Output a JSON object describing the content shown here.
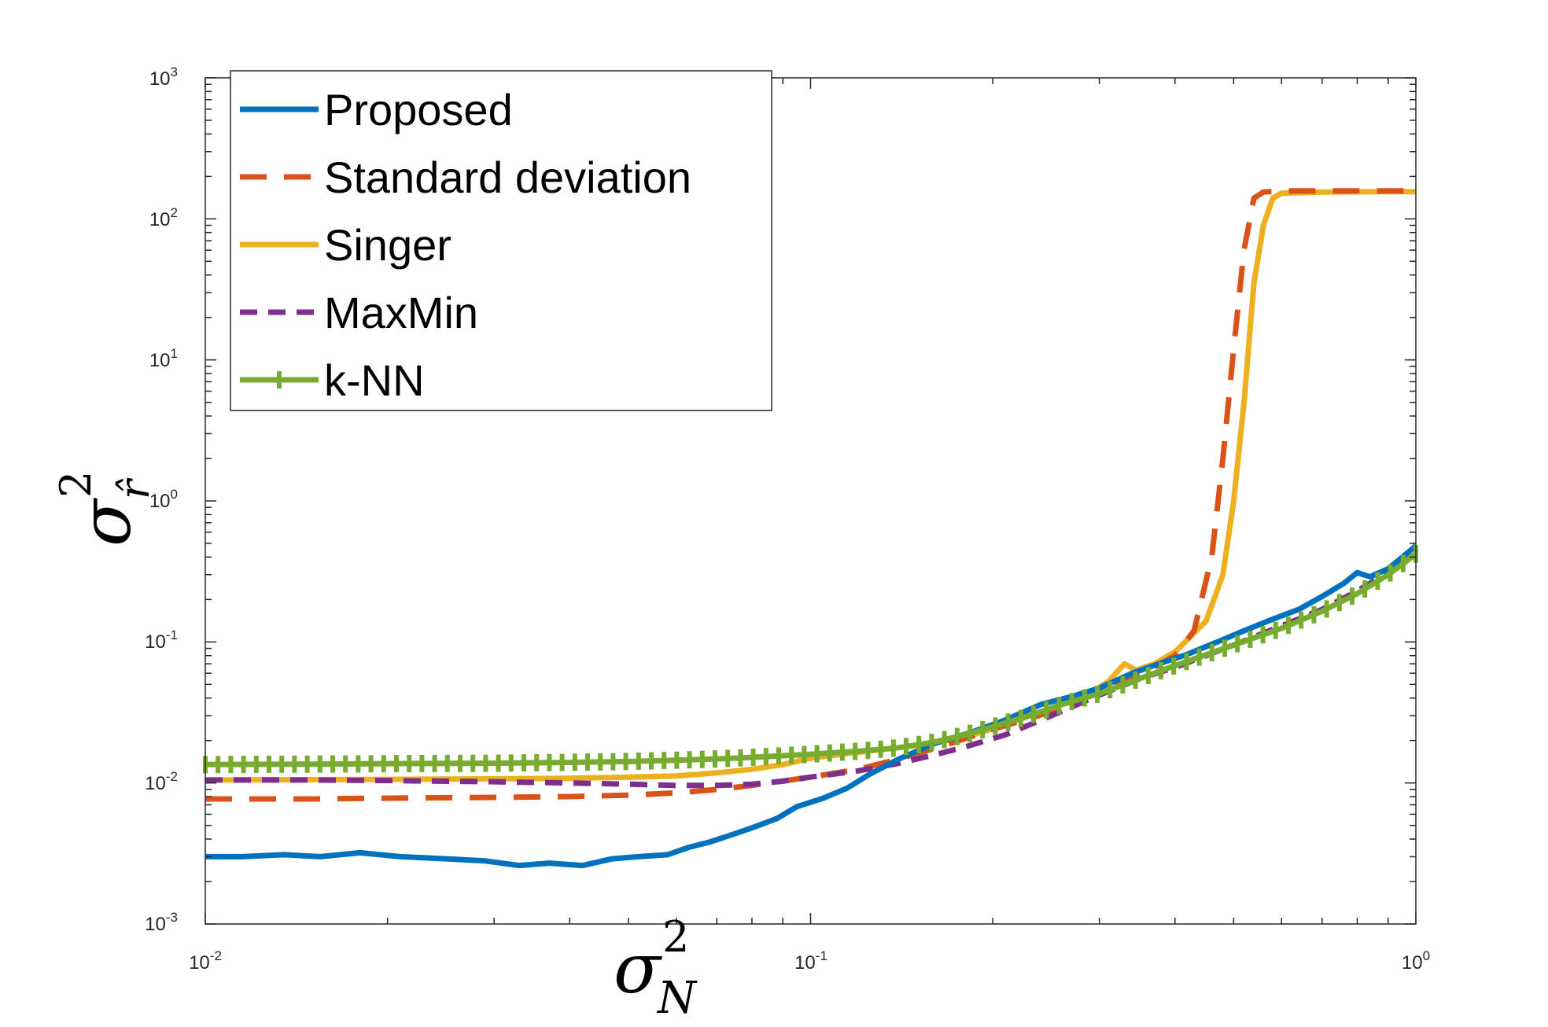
{
  "chart_data": {
    "type": "line",
    "xscale": "log",
    "yscale": "log",
    "xlim": [
      0.01,
      1
    ],
    "ylim": [
      0.001,
      1000
    ],
    "xlabel": {
      "symbol": "σ",
      "sup": "2",
      "sub": "N"
    },
    "ylabel": {
      "symbol": "σ",
      "sup": "2",
      "sub": "r̂"
    },
    "x_ticks": [
      {
        "base": "10",
        "exp": "-2"
      },
      {
        "base": "10",
        "exp": "-1"
      },
      {
        "base": "10",
        "exp": "0"
      }
    ],
    "y_ticks": [
      {
        "base": "10",
        "exp": "-3"
      },
      {
        "base": "10",
        "exp": "-2"
      },
      {
        "base": "10",
        "exp": "-1"
      },
      {
        "base": "10",
        "exp": "0"
      },
      {
        "base": "10",
        "exp": "1"
      },
      {
        "base": "10",
        "exp": "2"
      },
      {
        "base": "10",
        "exp": "3"
      }
    ],
    "legend_position": "top-left",
    "series": [
      {
        "name": "Proposed",
        "color": "#0072BD",
        "style": "solid",
        "points": [
          [
            0.01,
            0.003
          ],
          [
            0.0115,
            0.003
          ],
          [
            0.0135,
            0.0031
          ],
          [
            0.0155,
            0.003
          ],
          [
            0.018,
            0.0032
          ],
          [
            0.021,
            0.003
          ],
          [
            0.025,
            0.0029
          ],
          [
            0.029,
            0.0028
          ],
          [
            0.033,
            0.0026
          ],
          [
            0.037,
            0.0027
          ],
          [
            0.042,
            0.0026
          ],
          [
            0.047,
            0.0029
          ],
          [
            0.052,
            0.003
          ],
          [
            0.058,
            0.0031
          ],
          [
            0.063,
            0.0035
          ],
          [
            0.068,
            0.0038
          ],
          [
            0.073,
            0.0042
          ],
          [
            0.08,
            0.0048
          ],
          [
            0.088,
            0.0056
          ],
          [
            0.095,
            0.0068
          ],
          [
            0.105,
            0.0078
          ],
          [
            0.115,
            0.0092
          ],
          [
            0.125,
            0.0115
          ],
          [
            0.14,
            0.0148
          ],
          [
            0.16,
            0.019
          ],
          [
            0.185,
            0.023
          ],
          [
            0.21,
            0.028
          ],
          [
            0.24,
            0.036
          ],
          [
            0.27,
            0.041
          ],
          [
            0.3,
            0.047
          ],
          [
            0.34,
            0.06
          ],
          [
            0.38,
            0.071
          ],
          [
            0.42,
            0.082
          ],
          [
            0.47,
            0.1
          ],
          [
            0.52,
            0.12
          ],
          [
            0.58,
            0.145
          ],
          [
            0.64,
            0.17
          ],
          [
            0.7,
            0.21
          ],
          [
            0.76,
            0.26
          ],
          [
            0.8,
            0.31
          ],
          [
            0.84,
            0.29
          ],
          [
            0.9,
            0.33
          ],
          [
            0.95,
            0.4
          ],
          [
            1.0,
            0.48
          ]
        ]
      },
      {
        "name": "Standard deviation",
        "color": "#D95319",
        "style": "dashed",
        "points": [
          [
            0.01,
            0.0077
          ],
          [
            0.015,
            0.0077
          ],
          [
            0.02,
            0.0078
          ],
          [
            0.03,
            0.0079
          ],
          [
            0.04,
            0.008
          ],
          [
            0.05,
            0.0082
          ],
          [
            0.06,
            0.0085
          ],
          [
            0.07,
            0.009
          ],
          [
            0.08,
            0.0096
          ],
          [
            0.1,
            0.011
          ],
          [
            0.12,
            0.0125
          ],
          [
            0.14,
            0.0148
          ],
          [
            0.17,
            0.019
          ],
          [
            0.2,
            0.024
          ],
          [
            0.25,
            0.032
          ],
          [
            0.3,
            0.045
          ],
          [
            0.35,
            0.058
          ],
          [
            0.4,
            0.08
          ],
          [
            0.43,
            0.12
          ],
          [
            0.46,
            0.4
          ],
          [
            0.48,
            2.0
          ],
          [
            0.5,
            12
          ],
          [
            0.52,
            60
          ],
          [
            0.54,
            140
          ],
          [
            0.56,
            155
          ],
          [
            0.6,
            158
          ],
          [
            0.7,
            158
          ],
          [
            0.85,
            158
          ],
          [
            1.0,
            158
          ]
        ]
      },
      {
        "name": "Singer",
        "color": "#EDB120",
        "style": "solid",
        "points": [
          [
            0.01,
            0.0105
          ],
          [
            0.02,
            0.0106
          ],
          [
            0.03,
            0.0107
          ],
          [
            0.04,
            0.0108
          ],
          [
            0.05,
            0.011
          ],
          [
            0.06,
            0.0112
          ],
          [
            0.07,
            0.0118
          ],
          [
            0.08,
            0.0125
          ],
          [
            0.09,
            0.0135
          ],
          [
            0.1,
            0.015
          ],
          [
            0.12,
            0.0165
          ],
          [
            0.15,
            0.0185
          ],
          [
            0.18,
            0.021
          ],
          [
            0.21,
            0.026
          ],
          [
            0.25,
            0.034
          ],
          [
            0.28,
            0.04
          ],
          [
            0.31,
            0.052
          ],
          [
            0.33,
            0.07
          ],
          [
            0.345,
            0.063
          ],
          [
            0.37,
            0.07
          ],
          [
            0.4,
            0.085
          ],
          [
            0.45,
            0.14
          ],
          [
            0.48,
            0.3
          ],
          [
            0.5,
            1.0
          ],
          [
            0.52,
            5
          ],
          [
            0.54,
            35
          ],
          [
            0.56,
            90
          ],
          [
            0.58,
            140
          ],
          [
            0.6,
            152
          ],
          [
            0.7,
            155
          ],
          [
            0.85,
            156
          ],
          [
            1.0,
            156
          ]
        ]
      },
      {
        "name": "MaxMin",
        "color": "#7E2F8E",
        "style": "dashdot",
        "points": [
          [
            0.01,
            0.0105
          ],
          [
            0.015,
            0.0105
          ],
          [
            0.02,
            0.0104
          ],
          [
            0.03,
            0.0102
          ],
          [
            0.04,
            0.01
          ],
          [
            0.05,
            0.0098
          ],
          [
            0.06,
            0.0096
          ],
          [
            0.07,
            0.0096
          ],
          [
            0.08,
            0.0098
          ],
          [
            0.09,
            0.0103
          ],
          [
            0.1,
            0.011
          ],
          [
            0.12,
            0.0122
          ],
          [
            0.14,
            0.0138
          ],
          [
            0.16,
            0.0158
          ],
          [
            0.18,
            0.018
          ],
          [
            0.21,
            0.022
          ],
          [
            0.25,
            0.03
          ],
          [
            0.3,
            0.042
          ],
          [
            0.35,
            0.055
          ],
          [
            0.4,
            0.066
          ],
          [
            0.5,
            0.095
          ],
          [
            0.6,
            0.13
          ],
          [
            0.7,
            0.17
          ],
          [
            0.8,
            0.23
          ],
          [
            0.9,
            0.31
          ],
          [
            1.0,
            0.42
          ]
        ]
      },
      {
        "name": "k-NN",
        "color": "#77AC30",
        "style": "solid-markers",
        "points": [
          [
            0.01,
            0.0135
          ],
          [
            0.015,
            0.0136
          ],
          [
            0.02,
            0.0137
          ],
          [
            0.03,
            0.0138
          ],
          [
            0.04,
            0.014
          ],
          [
            0.05,
            0.0142
          ],
          [
            0.06,
            0.0145
          ],
          [
            0.07,
            0.0148
          ],
          [
            0.08,
            0.0152
          ],
          [
            0.09,
            0.0156
          ],
          [
            0.1,
            0.016
          ],
          [
            0.12,
            0.0168
          ],
          [
            0.14,
            0.0178
          ],
          [
            0.16,
            0.0195
          ],
          [
            0.18,
            0.022
          ],
          [
            0.2,
            0.025
          ],
          [
            0.23,
            0.03
          ],
          [
            0.26,
            0.036
          ],
          [
            0.3,
            0.043
          ],
          [
            0.35,
            0.055
          ],
          [
            0.4,
            0.068
          ],
          [
            0.5,
            0.095
          ],
          [
            0.6,
            0.125
          ],
          [
            0.7,
            0.165
          ],
          [
            0.8,
            0.22
          ],
          [
            0.9,
            0.3
          ],
          [
            1.0,
            0.42
          ]
        ]
      }
    ]
  }
}
